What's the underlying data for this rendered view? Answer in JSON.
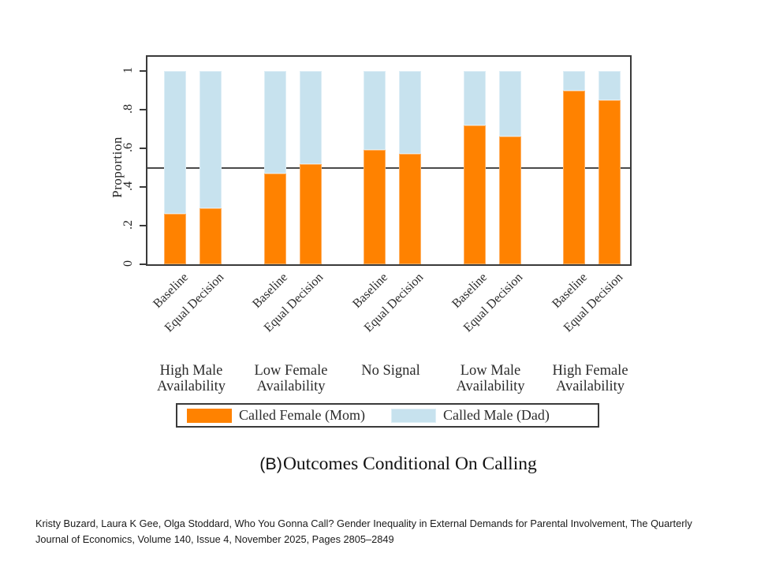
{
  "figure": {
    "caption_prefix": "(B)",
    "caption_title": "Outcomes Conditional On Calling"
  },
  "chart_data": {
    "type": "bar",
    "subtype": "stacked",
    "title": "(B) Outcomes Conditional On Calling",
    "xlabel": "",
    "ylabel": "Proportion",
    "ylim": [
      0,
      1
    ],
    "ytick_labels": [
      "0",
      ".2",
      ".4",
      ".6",
      ".8",
      "1"
    ],
    "ytick_values": [
      0,
      0.2,
      0.4,
      0.6,
      0.8,
      1
    ],
    "reference_line": 0.5,
    "grid": false,
    "legend_position": "bottom",
    "bar_condition_labels": [
      "Baseline",
      "Equal Decision"
    ],
    "groups": [
      {
        "label": "High Male Availability",
        "bars": [
          {
            "label": "Baseline",
            "called_female_mom": 0.26,
            "called_male_dad": 0.74
          },
          {
            "label": "Equal Decision",
            "called_female_mom": 0.29,
            "called_male_dad": 0.71
          }
        ]
      },
      {
        "label": "Low Female Availability",
        "bars": [
          {
            "label": "Baseline",
            "called_female_mom": 0.47,
            "called_male_dad": 0.53
          },
          {
            "label": "Equal Decision",
            "called_female_mom": 0.52,
            "called_male_dad": 0.48
          }
        ]
      },
      {
        "label": "No Signal",
        "bars": [
          {
            "label": "Baseline",
            "called_female_mom": 0.59,
            "called_male_dad": 0.41
          },
          {
            "label": "Equal Decision",
            "called_female_mom": 0.57,
            "called_male_dad": 0.43
          }
        ]
      },
      {
        "label": "Low Male Availability",
        "bars": [
          {
            "label": "Baseline",
            "called_female_mom": 0.72,
            "called_male_dad": 0.28
          },
          {
            "label": "Equal Decision",
            "called_female_mom": 0.66,
            "called_male_dad": 0.34
          }
        ]
      },
      {
        "label": "High Female Availability",
        "bars": [
          {
            "label": "Baseline",
            "called_female_mom": 0.9,
            "called_male_dad": 0.1
          },
          {
            "label": "Equal Decision",
            "called_female_mom": 0.85,
            "called_male_dad": 0.15
          }
        ]
      }
    ],
    "legend": [
      {
        "name": "Called Female (Mom)",
        "color": "#ff8200"
      },
      {
        "name": "Called Male (Dad)",
        "color": "#c7e2ee"
      }
    ]
  },
  "colors": {
    "called_female": "#ff8200",
    "called_male": "#c7e2ee",
    "axis": "#3a3a3a",
    "reference_line": "#4a4a4a"
  },
  "citation": {
    "lines": [
      "Kristy Buzard, Laura K Gee, Olga Stoddard, Who You Gonna Call? Gender Inequality in External Demands for Parental Involvement, The Quarterly",
      "Journal of Economics, Volume 140, Issue 4, November 2025, Pages 2805–2849"
    ]
  }
}
